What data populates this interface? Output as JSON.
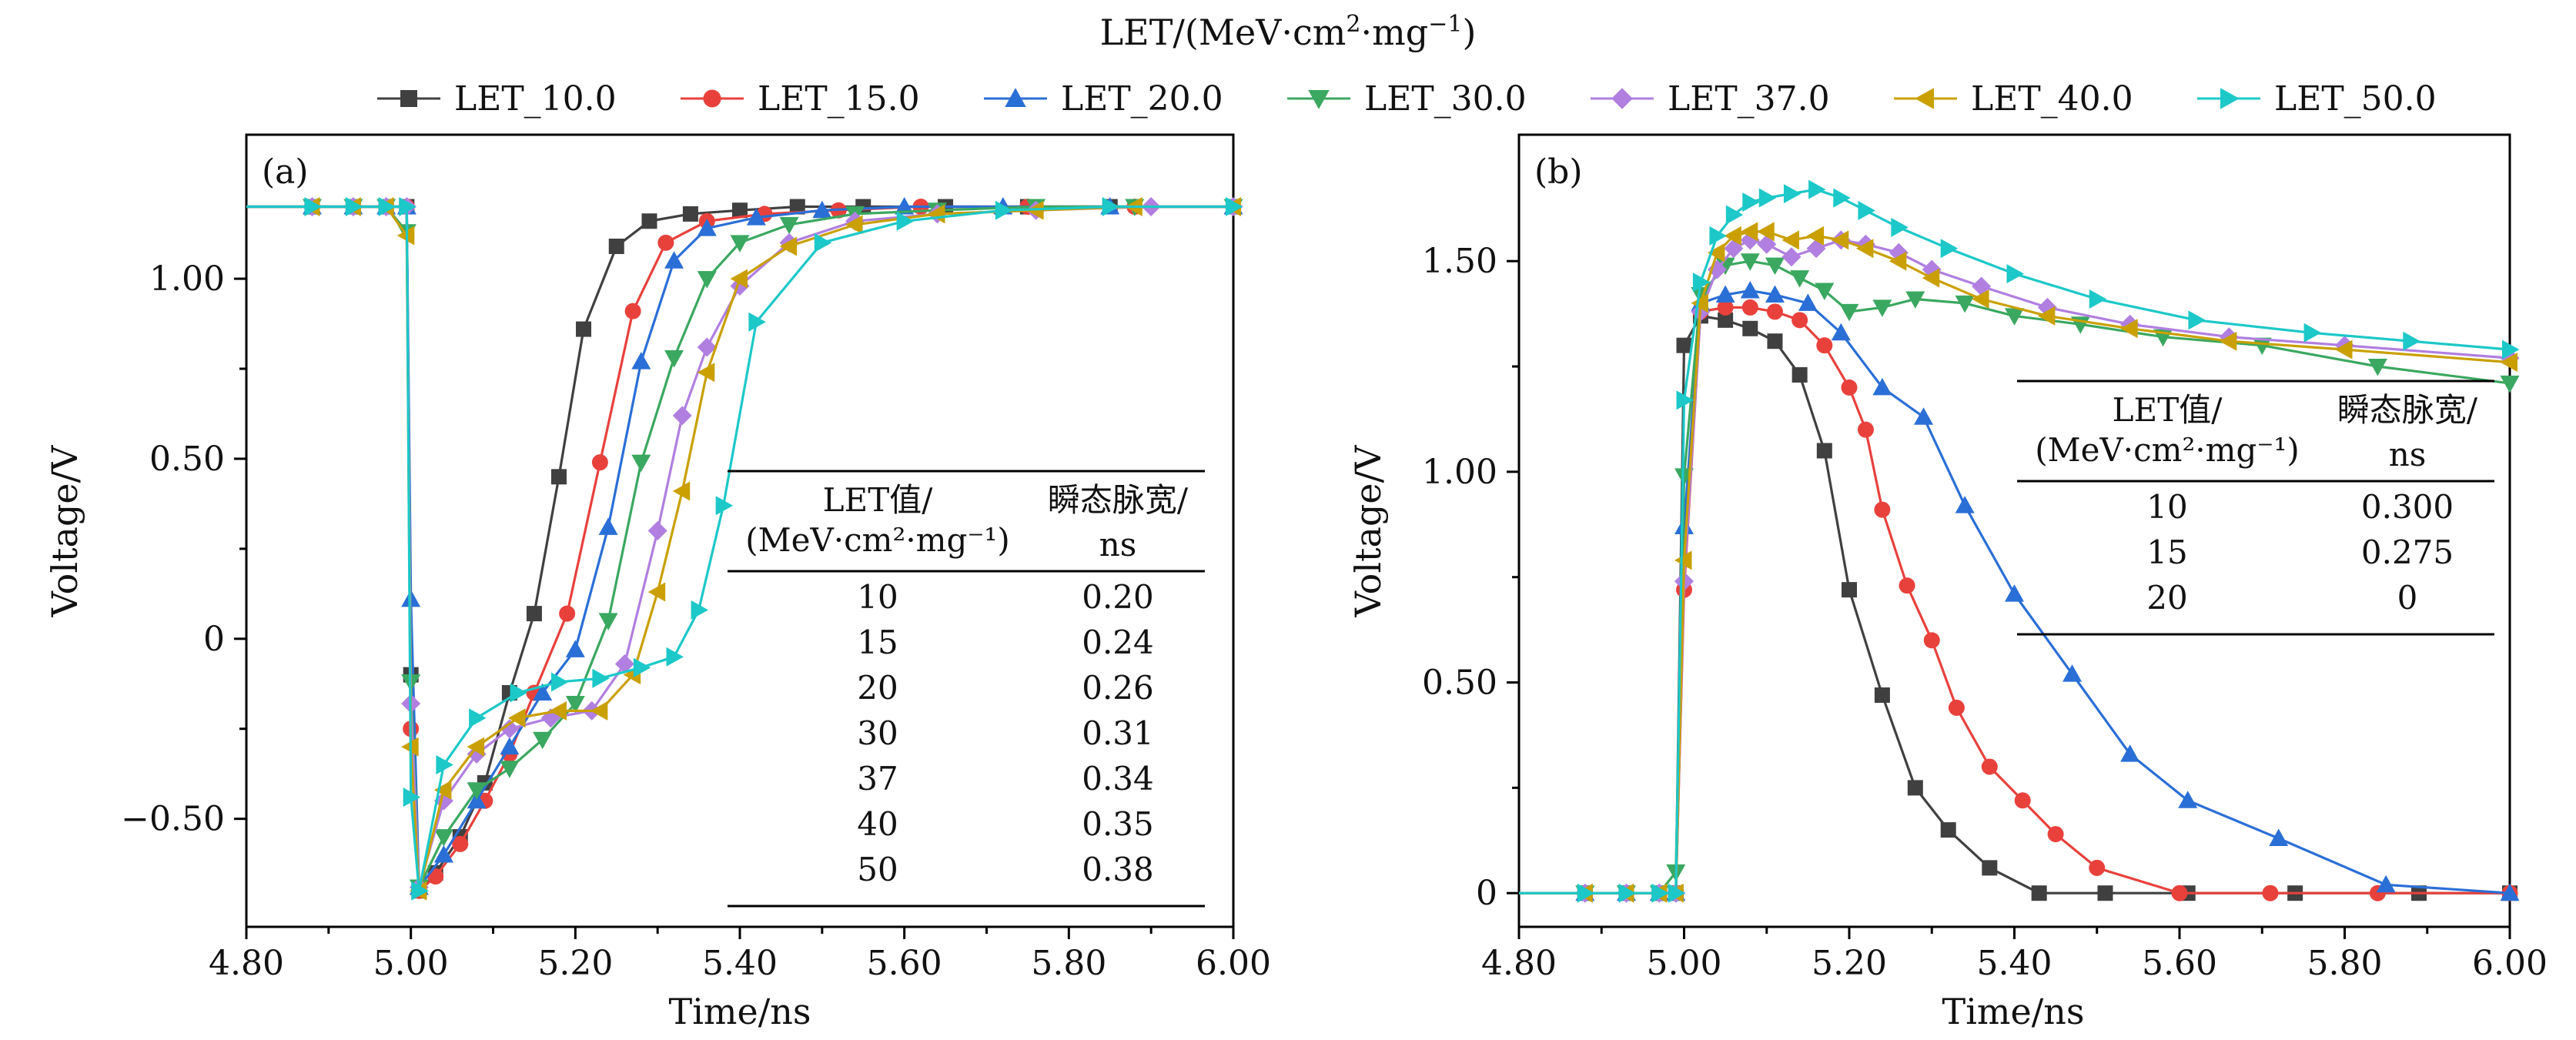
{
  "legend_title": "LET/(MeV·cm²·mg⁻¹)",
  "legend_title_parts": {
    "base": "LET/(MeV·cm",
    "sup1": "2",
    "mid": "·mg",
    "sup2": "−1",
    "end": ")"
  },
  "colors": {
    "LET_10.0": "#404040",
    "LET_15.0": "#e8413c",
    "LET_20.0": "#2a6fd6",
    "LET_30.0": "#3aa860",
    "LET_37.0": "#b07fe0",
    "LET_40.0": "#c9a000",
    "LET_50.0": "#1cc8c8"
  },
  "markers": {
    "LET_10.0": "square",
    "LET_15.0": "circle",
    "LET_20.0": "triangle-up",
    "LET_30.0": "triangle-down",
    "LET_37.0": "diamond",
    "LET_40.0": "triangle-left",
    "LET_50.0": "triangle-right"
  },
  "chart_data": [
    {
      "type": "line",
      "panel_label": "(a)",
      "xlabel": "Time/ns",
      "ylabel": "Voltage/V",
      "xlim": [
        4.8,
        6.0
      ],
      "ylim": [
        -0.8,
        1.4
      ],
      "xticks": [
        4.8,
        5.0,
        5.2,
        5.4,
        5.6,
        5.8,
        6.0
      ],
      "xtick_labels": [
        "4.80",
        "5.00",
        "5.20",
        "5.40",
        "5.60",
        "5.80",
        "6.00"
      ],
      "yticks": [
        -0.5,
        0,
        0.5,
        1.0
      ],
      "ytick_labels": [
        "−0.50",
        "0",
        "0.50",
        "1.00"
      ],
      "table": {
        "headers": [
          [
            "LET值/",
            "(MeV·cm²·mg⁻¹)"
          ],
          [
            "瞬态脉宽/",
            "ns"
          ]
        ],
        "rows": [
          [
            "10",
            "0.20"
          ],
          [
            "15",
            "0.24"
          ],
          [
            "20",
            "0.26"
          ],
          [
            "30",
            "0.31"
          ],
          [
            "37",
            "0.34"
          ],
          [
            "40",
            "0.35"
          ],
          [
            "50",
            "0.38"
          ]
        ]
      },
      "series": [
        {
          "name": "LET_10.0",
          "x": [
            4.8,
            4.88,
            4.93,
            4.97,
            4.995,
            5.0,
            5.01,
            5.03,
            5.06,
            5.09,
            5.12,
            5.15,
            5.18,
            5.21,
            5.25,
            5.29,
            5.34,
            5.4,
            5.47,
            5.55,
            5.65,
            5.75,
            5.85,
            6.0
          ],
          "y": [
            1.2,
            1.2,
            1.2,
            1.2,
            1.2,
            -0.1,
            -0.7,
            -0.65,
            -0.55,
            -0.4,
            -0.15,
            0.07,
            0.45,
            0.86,
            1.09,
            1.16,
            1.18,
            1.19,
            1.2,
            1.2,
            1.2,
            1.2,
            1.2,
            1.2
          ]
        },
        {
          "name": "LET_15.0",
          "x": [
            4.8,
            4.88,
            4.93,
            4.97,
            4.995,
            5.0,
            5.01,
            5.03,
            5.06,
            5.09,
            5.12,
            5.15,
            5.19,
            5.23,
            5.27,
            5.31,
            5.36,
            5.43,
            5.52,
            5.62,
            5.75,
            5.88,
            6.0
          ],
          "y": [
            1.2,
            1.2,
            1.2,
            1.2,
            1.2,
            -0.25,
            -0.7,
            -0.66,
            -0.57,
            -0.45,
            -0.32,
            -0.15,
            0.07,
            0.49,
            0.91,
            1.1,
            1.16,
            1.18,
            1.19,
            1.2,
            1.2,
            1.2,
            1.2
          ]
        },
        {
          "name": "LET_20.0",
          "x": [
            4.8,
            4.88,
            4.93,
            4.97,
            4.995,
            5.0,
            5.01,
            5.04,
            5.08,
            5.12,
            5.16,
            5.2,
            5.24,
            5.28,
            5.32,
            5.36,
            5.42,
            5.5,
            5.6,
            5.72,
            5.85,
            6.0
          ],
          "y": [
            1.2,
            1.2,
            1.2,
            1.2,
            1.2,
            0.11,
            -0.69,
            -0.6,
            -0.45,
            -0.3,
            -0.15,
            -0.03,
            0.31,
            0.77,
            1.05,
            1.14,
            1.17,
            1.19,
            1.2,
            1.2,
            1.2,
            1.2
          ]
        },
        {
          "name": "LET_30.0",
          "x": [
            4.8,
            4.88,
            4.93,
            4.97,
            4.995,
            5.0,
            5.01,
            5.04,
            5.08,
            5.12,
            5.16,
            5.2,
            5.24,
            5.28,
            5.32,
            5.36,
            5.4,
            5.46,
            5.54,
            5.64,
            5.76,
            5.88,
            6.0
          ],
          "y": [
            1.2,
            1.2,
            1.2,
            1.2,
            1.13,
            -0.12,
            -0.69,
            -0.55,
            -0.42,
            -0.36,
            -0.28,
            -0.18,
            0.05,
            0.49,
            0.78,
            1.0,
            1.1,
            1.15,
            1.18,
            1.19,
            1.2,
            1.2,
            1.2
          ]
        },
        {
          "name": "LET_37.0",
          "x": [
            4.8,
            4.88,
            4.93,
            4.97,
            4.995,
            5.0,
            5.01,
            5.04,
            5.08,
            5.12,
            5.17,
            5.22,
            5.26,
            5.3,
            5.33,
            5.36,
            5.4,
            5.46,
            5.54,
            5.64,
            5.76,
            5.9,
            6.0
          ],
          "y": [
            1.2,
            1.2,
            1.2,
            1.2,
            1.2,
            -0.18,
            -0.69,
            -0.45,
            -0.32,
            -0.25,
            -0.22,
            -0.2,
            -0.07,
            0.3,
            0.62,
            0.81,
            0.98,
            1.1,
            1.16,
            1.18,
            1.19,
            1.2,
            1.2
          ]
        },
        {
          "name": "LET_40.0",
          "x": [
            4.8,
            4.88,
            4.93,
            4.97,
            4.995,
            5.0,
            5.01,
            5.04,
            5.08,
            5.13,
            5.18,
            5.23,
            5.27,
            5.3,
            5.33,
            5.36,
            5.4,
            5.46,
            5.54,
            5.64,
            5.76,
            5.88,
            6.0
          ],
          "y": [
            1.2,
            1.2,
            1.2,
            1.2,
            1.12,
            -0.3,
            -0.7,
            -0.42,
            -0.3,
            -0.22,
            -0.2,
            -0.2,
            -0.1,
            0.13,
            0.41,
            0.74,
            1.0,
            1.09,
            1.15,
            1.18,
            1.19,
            1.2,
            1.2
          ]
        },
        {
          "name": "LET_50.0",
          "x": [
            4.8,
            4.88,
            4.93,
            4.97,
            4.995,
            5.0,
            5.01,
            5.04,
            5.08,
            5.13,
            5.18,
            5.23,
            5.28,
            5.32,
            5.35,
            5.38,
            5.42,
            5.5,
            5.6,
            5.72,
            5.85,
            6.0
          ],
          "y": [
            1.2,
            1.2,
            1.2,
            1.2,
            1.2,
            -0.44,
            -0.7,
            -0.35,
            -0.22,
            -0.15,
            -0.12,
            -0.11,
            -0.08,
            -0.05,
            0.08,
            0.37,
            0.88,
            1.1,
            1.16,
            1.19,
            1.2,
            1.2
          ]
        }
      ]
    },
    {
      "type": "line",
      "panel_label": "(b)",
      "xlabel": "Time/ns",
      "ylabel": "Voltage/V",
      "xlim": [
        4.8,
        6.0
      ],
      "ylim": [
        -0.08,
        1.8
      ],
      "xticks": [
        4.8,
        5.0,
        5.2,
        5.4,
        5.6,
        5.8,
        6.0
      ],
      "xtick_labels": [
        "4.80",
        "5.00",
        "5.20",
        "5.40",
        "5.60",
        "5.80",
        "6.00"
      ],
      "yticks": [
        0,
        0.5,
        1.0,
        1.5
      ],
      "ytick_labels": [
        "0",
        "0.50",
        "1.00",
        "1.50"
      ],
      "table": {
        "headers": [
          [
            "LET值/",
            "(MeV·cm²·mg⁻¹)"
          ],
          [
            "瞬态脉宽/",
            "ns"
          ]
        ],
        "rows": [
          [
            "10",
            "0.300"
          ],
          [
            "15",
            "0.275"
          ],
          [
            "20",
            "0"
          ]
        ]
      },
      "series": [
        {
          "name": "LET_10.0",
          "x": [
            4.8,
            4.88,
            4.93,
            4.97,
            4.99,
            5.0,
            5.02,
            5.05,
            5.08,
            5.11,
            5.14,
            5.17,
            5.2,
            5.24,
            5.28,
            5.32,
            5.37,
            5.43,
            5.51,
            5.61,
            5.74,
            5.89,
            6.0
          ],
          "y": [
            0,
            0,
            0,
            0,
            0,
            1.3,
            1.37,
            1.36,
            1.34,
            1.31,
            1.23,
            1.05,
            0.72,
            0.47,
            0.25,
            0.15,
            0.06,
            0.0,
            0.0,
            0.0,
            0.0,
            0.0,
            0.0
          ]
        },
        {
          "name": "LET_15.0",
          "x": [
            4.8,
            4.88,
            4.93,
            4.97,
            4.99,
            5.0,
            5.02,
            5.05,
            5.08,
            5.11,
            5.14,
            5.17,
            5.2,
            5.22,
            5.24,
            5.27,
            5.3,
            5.33,
            5.37,
            5.41,
            5.45,
            5.5,
            5.6,
            5.71,
            5.84,
            6.0
          ],
          "y": [
            0,
            0,
            0,
            0,
            0,
            0.72,
            1.38,
            1.39,
            1.39,
            1.38,
            1.36,
            1.3,
            1.2,
            1.1,
            0.91,
            0.73,
            0.6,
            0.44,
            0.3,
            0.22,
            0.14,
            0.06,
            0.0,
            0.0,
            0.0,
            0.0
          ]
        },
        {
          "name": "LET_20.0",
          "x": [
            4.8,
            4.88,
            4.93,
            4.97,
            4.99,
            5.0,
            5.02,
            5.05,
            5.08,
            5.11,
            5.15,
            5.19,
            5.24,
            5.29,
            5.34,
            5.4,
            5.47,
            5.54,
            5.61,
            5.72,
            5.85,
            6.0
          ],
          "y": [
            0,
            0,
            0,
            0,
            0.0,
            0.87,
            1.4,
            1.42,
            1.43,
            1.42,
            1.4,
            1.33,
            1.2,
            1.13,
            0.92,
            0.71,
            0.52,
            0.33,
            0.22,
            0.13,
            0.02,
            0.0
          ]
        },
        {
          "name": "LET_30.0",
          "x": [
            4.8,
            4.88,
            4.93,
            4.97,
            4.99,
            5.0,
            5.02,
            5.05,
            5.08,
            5.11,
            5.14,
            5.17,
            5.2,
            5.24,
            5.28,
            5.34,
            5.4,
            5.48,
            5.58,
            5.7,
            5.84,
            6.0
          ],
          "y": [
            0,
            0,
            0,
            0,
            0.05,
            0.99,
            1.42,
            1.49,
            1.5,
            1.49,
            1.46,
            1.43,
            1.38,
            1.39,
            1.41,
            1.4,
            1.37,
            1.35,
            1.32,
            1.3,
            1.25,
            1.21
          ]
        },
        {
          "name": "LET_37.0",
          "x": [
            4.8,
            4.88,
            4.93,
            4.97,
            4.99,
            5.0,
            5.02,
            5.04,
            5.06,
            5.08,
            5.1,
            5.13,
            5.16,
            5.19,
            5.22,
            5.26,
            5.3,
            5.36,
            5.44,
            5.54,
            5.66,
            5.8,
            6.0
          ],
          "y": [
            0,
            0,
            0,
            0,
            0,
            0.74,
            1.38,
            1.48,
            1.53,
            1.55,
            1.54,
            1.51,
            1.53,
            1.55,
            1.54,
            1.52,
            1.48,
            1.44,
            1.39,
            1.35,
            1.32,
            1.3,
            1.27
          ]
        },
        {
          "name": "LET_40.0",
          "x": [
            4.8,
            4.88,
            4.93,
            4.97,
            4.99,
            5.0,
            5.02,
            5.04,
            5.06,
            5.08,
            5.1,
            5.13,
            5.16,
            5.19,
            5.22,
            5.26,
            5.3,
            5.36,
            5.44,
            5.54,
            5.66,
            5.8,
            6.0
          ],
          "y": [
            0,
            0,
            0,
            0,
            0,
            0.79,
            1.4,
            1.52,
            1.56,
            1.57,
            1.57,
            1.55,
            1.56,
            1.55,
            1.53,
            1.5,
            1.46,
            1.41,
            1.37,
            1.34,
            1.31,
            1.29,
            1.26
          ]
        },
        {
          "name": "LET_50.0",
          "x": [
            4.8,
            4.88,
            4.93,
            4.97,
            4.99,
            5.0,
            5.02,
            5.04,
            5.06,
            5.08,
            5.1,
            5.13,
            5.16,
            5.19,
            5.22,
            5.26,
            5.32,
            5.4,
            5.5,
            5.62,
            5.76,
            5.88,
            6.0
          ],
          "y": [
            0,
            0,
            0,
            0,
            0,
            1.17,
            1.45,
            1.56,
            1.61,
            1.64,
            1.65,
            1.66,
            1.67,
            1.65,
            1.62,
            1.58,
            1.53,
            1.47,
            1.41,
            1.36,
            1.33,
            1.31,
            1.29
          ]
        }
      ]
    }
  ]
}
